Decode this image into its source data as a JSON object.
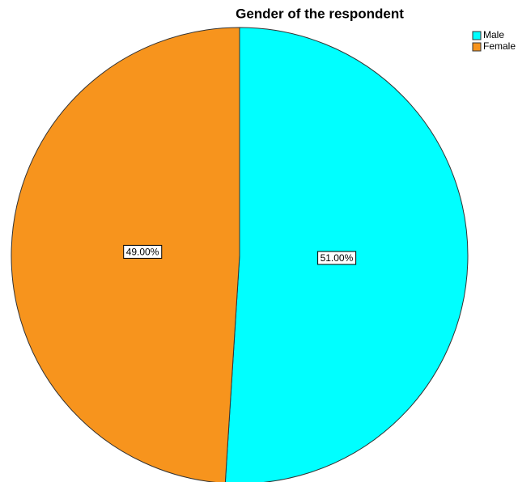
{
  "chart_data": {
    "type": "pie",
    "title": "Gender of the respondent",
    "categories": [
      "Male",
      "Female"
    ],
    "values": [
      51,
      49
    ],
    "value_labels": [
      "51.00%",
      "49.00%"
    ],
    "colors": [
      "#00ffff",
      "#f7941d"
    ],
    "legend": "top-right"
  }
}
